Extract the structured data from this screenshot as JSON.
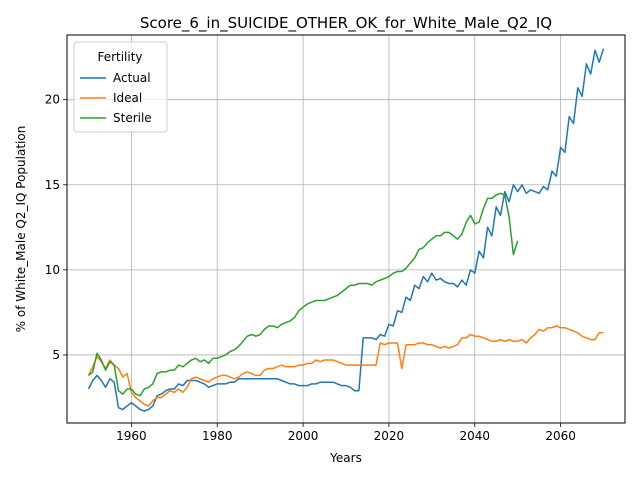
{
  "chart_data": {
    "type": "line",
    "title": "Score_6_in_SUICIDE_OTHER_OK_for_White_Male_Q2_IQ",
    "xlabel": "Years",
    "ylabel": "% of White_Male Q2_IQ Population",
    "xlim": [
      1945,
      2075
    ],
    "ylim": [
      1.0,
      23.8
    ],
    "xticks": [
      1960,
      1980,
      2000,
      2020,
      2040,
      2060
    ],
    "yticks": [
      5,
      10,
      15,
      20
    ],
    "grid": true,
    "legend": {
      "title": "Fertility",
      "placement": "top-left"
    },
    "colors": {
      "Actual": "#1f77b4",
      "Ideal": "#ff7f0e",
      "Sterile": "#2ca02c"
    },
    "series": [
      {
        "name": "Actual",
        "x": [
          1950,
          1951,
          1952,
          1953,
          1954,
          1955,
          1956,
          1957,
          1958,
          1959,
          1960,
          1961,
          1962,
          1963,
          1964,
          1965,
          1966,
          1967,
          1968,
          1969,
          1970,
          1971,
          1972,
          1973,
          1974,
          1975,
          1976,
          1977,
          1978,
          1979,
          1980,
          1981,
          1982,
          1983,
          1984,
          1985,
          1986,
          1987,
          1988,
          1989,
          1990,
          1991,
          1992,
          1993,
          1994,
          1995,
          1996,
          1997,
          1998,
          1999,
          2000,
          2001,
          2002,
          2003,
          2004,
          2005,
          2006,
          2007,
          2008,
          2009,
          2010,
          2011,
          2012,
          2013,
          2014,
          2015,
          2016,
          2017,
          2018,
          2019,
          2020,
          2021,
          2022,
          2023,
          2024,
          2025,
          2026,
          2027,
          2028,
          2029,
          2030,
          2031,
          2032,
          2033,
          2034,
          2035,
          2036,
          2037,
          2038,
          2039,
          2040,
          2041,
          2042,
          2043,
          2044,
          2045,
          2046,
          2047,
          2048,
          2049,
          2050,
          2051,
          2052,
          2053,
          2054,
          2055,
          2056,
          2057,
          2058,
          2059,
          2060,
          2061,
          2062,
          2063,
          2064,
          2065,
          2066,
          2067,
          2068,
          2069,
          2070
        ],
        "values": [
          3.0,
          3.5,
          3.8,
          3.5,
          3.1,
          3.6,
          3.4,
          1.9,
          1.8,
          2.0,
          2.2,
          2.0,
          1.8,
          1.7,
          1.8,
          2.0,
          2.6,
          2.7,
          2.9,
          3.0,
          3.0,
          3.3,
          3.2,
          3.5,
          3.5,
          3.5,
          3.4,
          3.3,
          3.1,
          3.2,
          3.3,
          3.3,
          3.3,
          3.4,
          3.4,
          3.6,
          3.6,
          3.6,
          3.6,
          3.6,
          3.6,
          3.6,
          3.6,
          3.6,
          3.6,
          3.5,
          3.4,
          3.3,
          3.3,
          3.2,
          3.2,
          3.2,
          3.3,
          3.3,
          3.4,
          3.4,
          3.4,
          3.4,
          3.3,
          3.2,
          3.2,
          3.1,
          2.9,
          2.9,
          6.0,
          6.0,
          6.0,
          5.9,
          6.2,
          6.1,
          6.8,
          6.7,
          7.6,
          7.5,
          8.4,
          8.2,
          9.1,
          8.9,
          9.6,
          9.3,
          9.8,
          9.4,
          9.5,
          9.3,
          9.2,
          9.2,
          9.0,
          9.4,
          9.1,
          10.0,
          9.8,
          11.1,
          10.7,
          12.5,
          12.0,
          13.7,
          13.2,
          14.6,
          14.0,
          15.0,
          14.6,
          15.0,
          14.5,
          14.7,
          14.6,
          14.5,
          14.9,
          14.7,
          15.8,
          15.5,
          17.2,
          16.9,
          19.0,
          18.6,
          20.7,
          20.2,
          22.1,
          21.5,
          22.9,
          22.2,
          23.0
        ]
      },
      {
        "name": "Ideal",
        "x": [
          1950,
          1951,
          1952,
          1953,
          1954,
          1955,
          1956,
          1957,
          1958,
          1959,
          1960,
          1961,
          1962,
          1963,
          1964,
          1965,
          1966,
          1967,
          1968,
          1969,
          1970,
          1971,
          1972,
          1973,
          1974,
          1975,
          1976,
          1977,
          1978,
          1979,
          1980,
          1981,
          1982,
          1983,
          1984,
          1985,
          1986,
          1987,
          1988,
          1989,
          1990,
          1991,
          1992,
          1993,
          1994,
          1995,
          1996,
          1997,
          1998,
          1999,
          2000,
          2001,
          2002,
          2003,
          2004,
          2005,
          2006,
          2007,
          2008,
          2009,
          2010,
          2011,
          2012,
          2013,
          2014,
          2015,
          2016,
          2017,
          2018,
          2019,
          2020,
          2021,
          2022,
          2023,
          2024,
          2025,
          2026,
          2027,
          2028,
          2029,
          2030,
          2031,
          2032,
          2033,
          2034,
          2035,
          2036,
          2037,
          2038,
          2039,
          2040,
          2041,
          2042,
          2043,
          2044,
          2045,
          2046,
          2047,
          2048,
          2049,
          2050,
          2051,
          2052,
          2053,
          2054,
          2055,
          2056,
          2057,
          2058,
          2059,
          2060,
          2061,
          2062,
          2063,
          2064,
          2065,
          2066,
          2067,
          2068,
          2069,
          2070
        ],
        "values": [
          3.8,
          4.3,
          4.9,
          4.6,
          4.2,
          4.7,
          4.4,
          4.2,
          3.7,
          3.9,
          2.8,
          2.5,
          2.3,
          2.1,
          2.0,
          2.3,
          2.5,
          2.5,
          2.7,
          2.9,
          2.8,
          3.0,
          2.8,
          3.1,
          3.6,
          3.7,
          3.6,
          3.5,
          3.4,
          3.6,
          3.7,
          3.8,
          3.8,
          3.7,
          3.6,
          3.7,
          3.9,
          4.0,
          3.9,
          3.8,
          3.8,
          4.1,
          4.2,
          4.2,
          4.3,
          4.4,
          4.3,
          4.3,
          4.3,
          4.4,
          4.4,
          4.5,
          4.5,
          4.7,
          4.6,
          4.7,
          4.7,
          4.7,
          4.6,
          4.5,
          4.4,
          4.4,
          4.4,
          4.4,
          4.4,
          4.4,
          4.4,
          4.4,
          5.7,
          5.6,
          5.7,
          5.7,
          5.7,
          4.2,
          5.6,
          5.6,
          5.6,
          5.7,
          5.7,
          5.6,
          5.6,
          5.5,
          5.4,
          5.5,
          5.4,
          5.5,
          5.6,
          6.0,
          6.0,
          6.2,
          6.1,
          6.1,
          6.0,
          5.9,
          5.8,
          5.8,
          5.9,
          5.8,
          5.9,
          5.8,
          5.8,
          5.9,
          5.7,
          6.0,
          6.2,
          6.5,
          6.4,
          6.6,
          6.6,
          6.7,
          6.6,
          6.6,
          6.5,
          6.4,
          6.3,
          6.1,
          6.0,
          5.9,
          5.9,
          6.3,
          6.3
        ]
      },
      {
        "name": "Sterile",
        "x": [
          1950,
          1951,
          1952,
          1953,
          1954,
          1955,
          1956,
          1957,
          1958,
          1959,
          1960,
          1961,
          1962,
          1963,
          1964,
          1965,
          1966,
          1967,
          1968,
          1969,
          1970,
          1971,
          1972,
          1973,
          1974,
          1975,
          1976,
          1977,
          1978,
          1979,
          1980,
          1981,
          1982,
          1983,
          1984,
          1985,
          1986,
          1987,
          1988,
          1989,
          1990,
          1991,
          1992,
          1993,
          1994,
          1995,
          1996,
          1997,
          1998,
          1999,
          2000,
          2001,
          2002,
          2003,
          2004,
          2005,
          2006,
          2007,
          2008,
          2009,
          2010,
          2011,
          2012,
          2013,
          2014,
          2015,
          2016,
          2017,
          2018,
          2019,
          2020,
          2021,
          2022,
          2023,
          2024,
          2025,
          2026,
          2027,
          2028,
          2029,
          2030,
          2031,
          2032,
          2033,
          2034,
          2035,
          2036,
          2037,
          2038,
          2039,
          2040,
          2041,
          2042,
          2043,
          2044,
          2045,
          2046,
          2047,
          2048,
          2049,
          2050
        ],
        "values": [
          3.8,
          4.0,
          5.1,
          4.7,
          4.1,
          4.6,
          4.4,
          2.9,
          2.7,
          3.0,
          3.0,
          2.7,
          2.6,
          3.0,
          3.1,
          3.3,
          3.9,
          4.0,
          4.0,
          4.1,
          4.1,
          4.4,
          4.3,
          4.5,
          4.7,
          4.8,
          4.6,
          4.7,
          4.5,
          4.8,
          4.8,
          4.9,
          5.0,
          5.2,
          5.3,
          5.5,
          5.8,
          6.1,
          6.2,
          6.1,
          6.2,
          6.5,
          6.7,
          6.7,
          6.6,
          6.8,
          6.9,
          7.0,
          7.2,
          7.6,
          7.8,
          8.0,
          8.1,
          8.2,
          8.2,
          8.2,
          8.3,
          8.4,
          8.5,
          8.7,
          8.9,
          9.1,
          9.1,
          9.2,
          9.2,
          9.2,
          9.1,
          9.3,
          9.4,
          9.5,
          9.6,
          9.8,
          9.9,
          9.9,
          10.1,
          10.4,
          10.7,
          11.2,
          11.3,
          11.6,
          11.8,
          12.0,
          12.0,
          12.2,
          12.2,
          12.0,
          11.8,
          12.1,
          12.8,
          13.2,
          12.7,
          12.8,
          13.6,
          14.2,
          14.2,
          14.4,
          14.5,
          14.4,
          13.1,
          10.9,
          11.7
        ]
      }
    ]
  }
}
